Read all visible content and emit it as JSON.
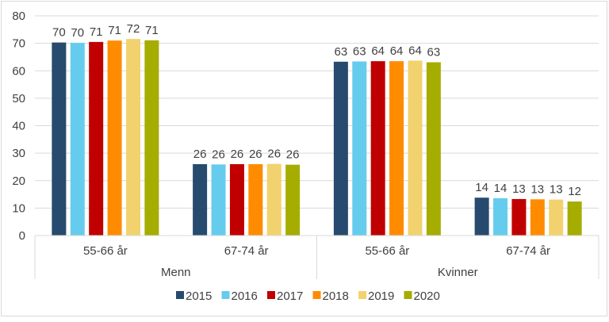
{
  "chart_data": {
    "type": "bar",
    "title": "",
    "xlabel": "",
    "ylabel": "",
    "ylim": [
      0,
      80
    ],
    "yticks": [
      0,
      10,
      20,
      30,
      40,
      50,
      60,
      70,
      80
    ],
    "grid": true,
    "legend_position": "bottom",
    "groups": [
      {
        "label": "Menn",
        "categories": [
          "55-66 år",
          "67-74 år"
        ]
      },
      {
        "label": "Kvinner",
        "categories": [
          "55-66 år",
          "67-74 år"
        ]
      }
    ],
    "categories": [
      "Menn 55-66 år",
      "Menn 67-74 år",
      "Kvinner 55-66 år",
      "Kvinner 67-74 år"
    ],
    "series": [
      {
        "name": "2015",
        "color": "#264B6E",
        "values": [
          70.3,
          26.0,
          63.3,
          13.8
        ],
        "labels": [
          "70",
          "26",
          "63",
          "14"
        ]
      },
      {
        "name": "2016",
        "color": "#66CCEE",
        "values": [
          70.2,
          25.9,
          63.4,
          13.6
        ],
        "labels": [
          "70",
          "26",
          "63",
          "14"
        ]
      },
      {
        "name": "2017",
        "color": "#C00000",
        "values": [
          70.5,
          26.0,
          63.5,
          13.3
        ],
        "labels": [
          "71",
          "26",
          "64",
          "13"
        ]
      },
      {
        "name": "2018",
        "color": "#FF8C00",
        "values": [
          71.0,
          26.0,
          63.5,
          13.2
        ],
        "labels": [
          "71",
          "26",
          "64",
          "13"
        ]
      },
      {
        "name": "2019",
        "color": "#F2D26E",
        "values": [
          71.6,
          26.1,
          63.7,
          13.1
        ],
        "labels": [
          "72",
          "26",
          "64",
          "13"
        ]
      },
      {
        "name": "2020",
        "color": "#A5AD00",
        "values": [
          71.1,
          25.8,
          63.1,
          12.4
        ],
        "labels": [
          "71",
          "26",
          "63",
          "12"
        ]
      }
    ]
  }
}
